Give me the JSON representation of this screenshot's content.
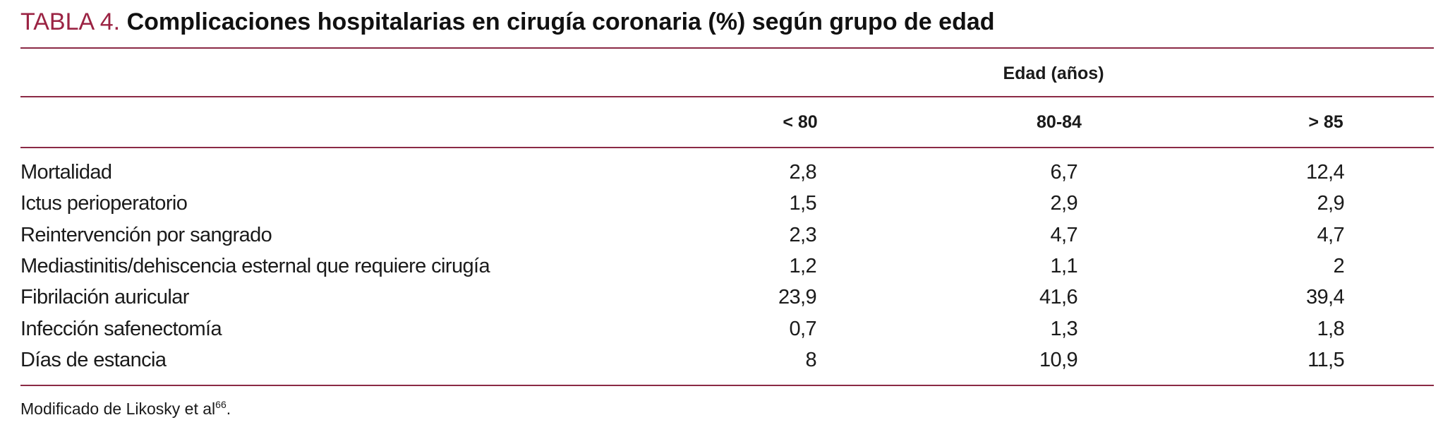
{
  "header": {
    "label": "TABLA 4.",
    "title": "Complicaciones hospitalarias en cirugía coronaria (%) según grupo de edad"
  },
  "table": {
    "group_header": "Edad (años)",
    "columns": [
      "< 80",
      "80-84",
      "> 85"
    ],
    "rows": [
      [
        "Mortalidad",
        "2,8",
        "6,7",
        "12,4"
      ],
      [
        "Ictus perioperatorio",
        "1,5",
        "2,9",
        "2,9"
      ],
      [
        "Reintervención por sangrado",
        "2,3",
        "4,7",
        "4,7"
      ],
      [
        "Mediastinitis/dehiscencia esternal que requiere cirugía",
        "1,2",
        "1,1",
        "2"
      ],
      [
        "Fibrilación auricular",
        "23,9",
        "41,6",
        "39,4"
      ],
      [
        "Infección safenectomía",
        "0,7",
        "1,3",
        "1,8"
      ],
      [
        "Días de estancia",
        "8",
        "10,9",
        "11,5"
      ]
    ]
  },
  "footnote": {
    "text": "Modificado de Likosky et al",
    "superscript": "66",
    "end": "."
  }
}
